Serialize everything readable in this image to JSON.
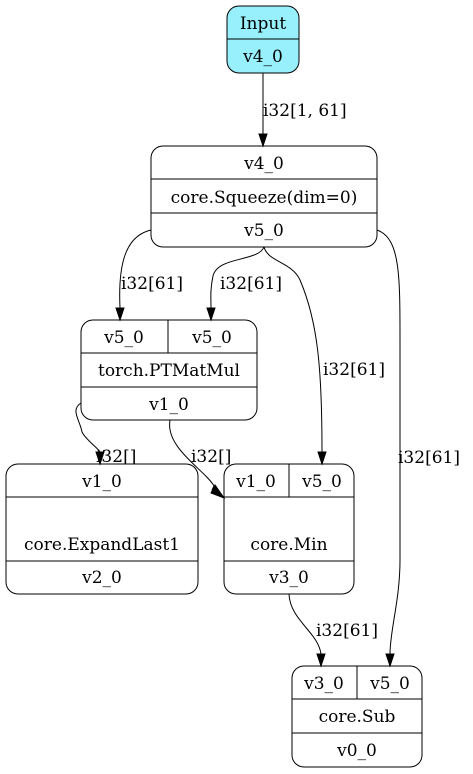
{
  "nodes": {
    "input": {
      "title": "Input",
      "output": "v4_0",
      "fill": "#98f0fc"
    },
    "squeeze": {
      "input": "v4_0",
      "op": "core.Squeeze(dim=0)",
      "output": "v5_0"
    },
    "matmul": {
      "input_a": "v5_0",
      "input_b": "v5_0",
      "op": "torch.PTMatMul",
      "output": "v1_0"
    },
    "expand": {
      "input": "v1_0",
      "op": "core.ExpandLast1",
      "output": "v2_0"
    },
    "min": {
      "input_a": "v1_0",
      "input_b": "v5_0",
      "op": "core.Min",
      "output": "v3_0"
    },
    "sub": {
      "input_a": "v3_0",
      "input_b": "v5_0",
      "op": "core.Sub",
      "output": "v0_0"
    }
  },
  "edges": {
    "input_to_squeeze": "i32[1, 61]",
    "squeeze_to_matmul_a": "i32[61]",
    "squeeze_to_matmul_b": "i32[61]",
    "squeeze_to_min": "i32[61]",
    "squeeze_to_sub": "i32[61]",
    "matmul_to_expand": "i32[]",
    "matmul_to_min": "i32[]",
    "min_to_sub": "i32[61]"
  }
}
